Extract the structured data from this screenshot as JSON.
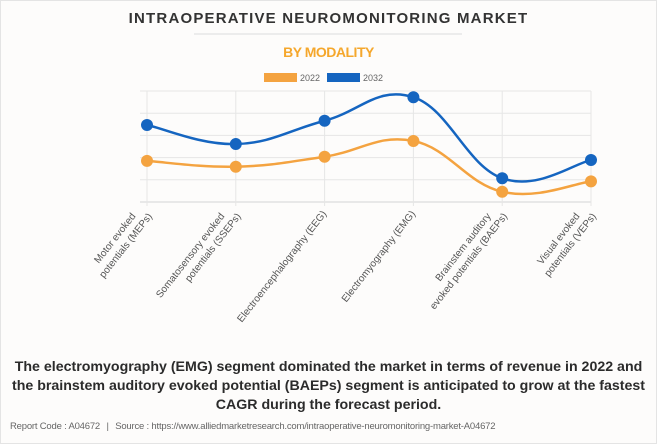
{
  "header": {
    "title": "INTRAOPERATIVE NEUROMONITORING MARKET",
    "subtitle": "BY MODALITY"
  },
  "chart_data": {
    "type": "line",
    "title": "INTRAOPERATIVE NEUROMONITORING MARKET",
    "subtitle": "BY MODALITY",
    "xlabel": "",
    "ylabel": "",
    "y_tick_labels_visible": false,
    "ylim": [
      0,
      5
    ],
    "grid": true,
    "legend_position": "top-center",
    "smooth": true,
    "categories": [
      [
        "Motor evoked",
        "potentials (MEPs)"
      ],
      [
        "Somatosensory evoked",
        "potentials (SSEPs)"
      ],
      [
        "Electroencephalography (EEG)"
      ],
      [
        "Electromyography (EMG)"
      ],
      [
        "Brainstem auditory",
        "evoked potentials (BAEPs)"
      ],
      [
        "Visual evoked",
        "potentials (VEPs)"
      ]
    ],
    "series": [
      {
        "name": "2022",
        "color": "#f4a340",
        "values": [
          1.85,
          1.59,
          2.04,
          2.75,
          0.46,
          0.93
        ]
      },
      {
        "name": "2032",
        "color": "#1565c0",
        "values": [
          3.47,
          2.61,
          3.66,
          4.72,
          1.07,
          1.89
        ]
      }
    ]
  },
  "description": "The electromyography (EMG) segment dominated the market in terms of revenue in 2022 and the brainstem auditory evoked potential (BAEPs) segment is anticipated to grow at the fastest CAGR during the forecast period.",
  "footer": {
    "report_code_label": "Report Code : A04672",
    "separator": "|",
    "source_label": "Source : https://www.alliedmarketresearch.com/intraoperative-neuromonitoring-market-A04672"
  }
}
